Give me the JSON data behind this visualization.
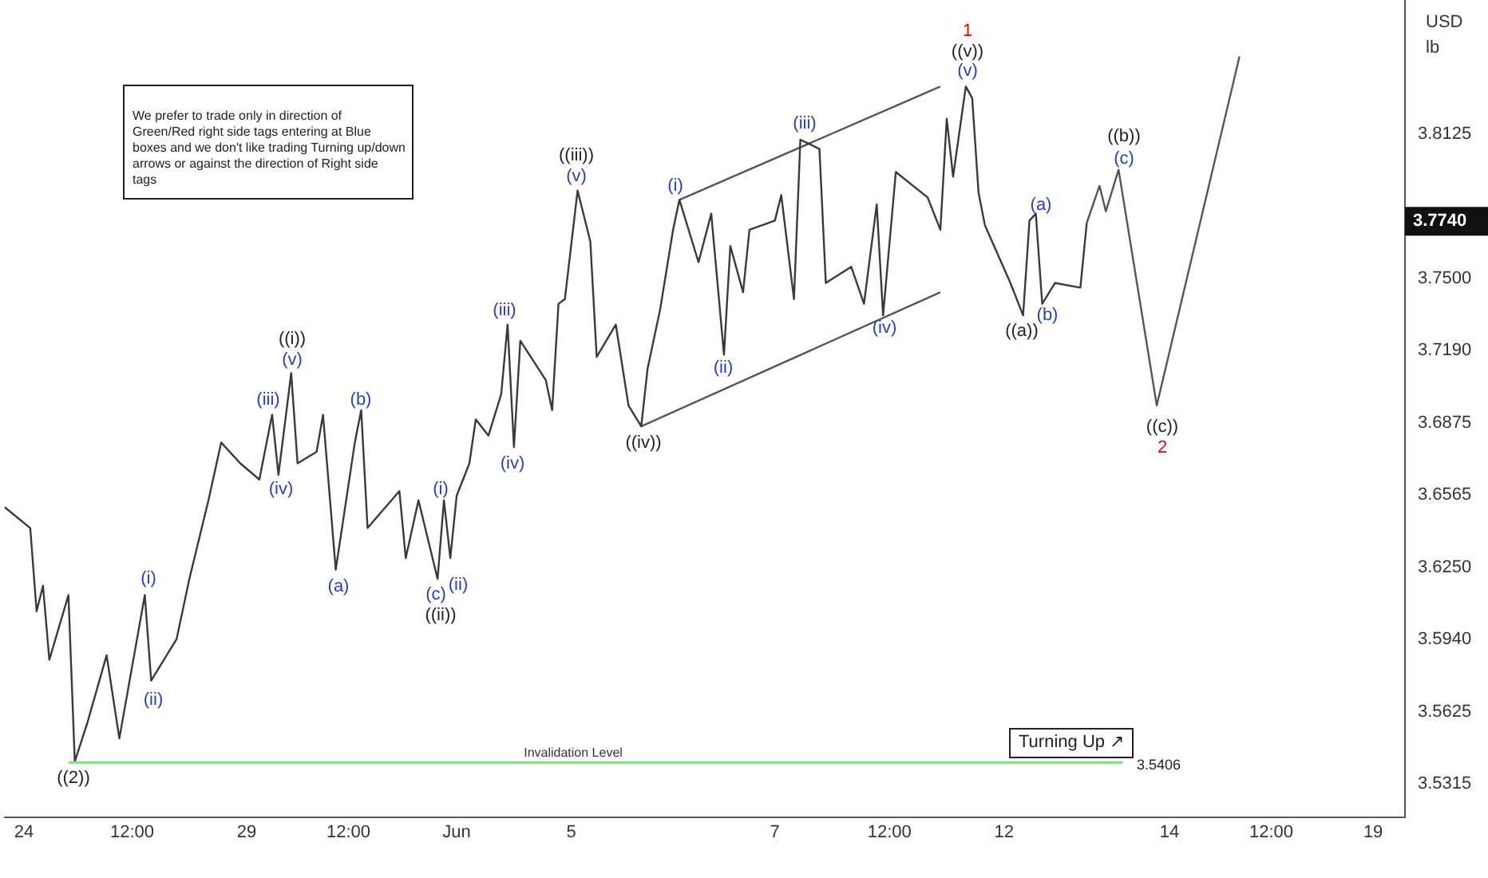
{
  "chart_data": {
    "type": "line",
    "ylabel": "USD lb",
    "ylim": [
      3.517,
      3.87
    ],
    "categories": [
      null,
      null,
      null,
      "24",
      null,
      null,
      null,
      null,
      null,
      null,
      null,
      null,
      null,
      null,
      null,
      null,
      null,
      null,
      null,
      null,
      "12:00",
      null,
      null,
      null,
      null,
      null,
      null,
      null,
      null,
      null,
      null,
      null,
      null,
      null,
      null,
      null,
      null,
      null,
      "29",
      null,
      null,
      null,
      null,
      null,
      null,
      null,
      null,
      null,
      null,
      null,
      null,
      null,
      null,
      null,
      "12:00",
      null,
      null,
      null,
      null,
      null,
      null,
      null,
      null,
      null,
      null,
      null,
      null,
      null,
      null,
      null,
      null,
      "Jun",
      null,
      null,
      null,
      null,
      null,
      null,
      null,
      null,
      null,
      null,
      null,
      null,
      null,
      null,
      null,
      null,
      null,
      "5",
      null,
      null,
      null,
      null,
      null,
      null,
      null,
      null,
      null,
      null,
      null,
      null,
      null,
      null,
      null,
      null,
      null,
      null,
      null,
      null,
      null,
      null,
      null,
      null,
      null,
      null,
      null,
      null,
      null,
      null,
      null,
      "7",
      null,
      null,
      null,
      null,
      null,
      null,
      null,
      null,
      null,
      null,
      null,
      null,
      null,
      null,
      null,
      null,
      null,
      "12:00",
      null,
      null,
      null,
      null,
      null,
      null,
      null,
      null,
      null,
      null,
      null,
      null,
      null,
      null,
      null,
      null,
      null,
      "12",
      null,
      null,
      null,
      null,
      null,
      null,
      null,
      null,
      null,
      null,
      null,
      null,
      null,
      null,
      null,
      null,
      null,
      null,
      null,
      null,
      null,
      null,
      null,
      null,
      null,
      "14",
      null,
      null,
      null,
      null,
      null,
      null,
      null,
      null,
      null,
      null,
      null,
      null,
      null,
      null,
      null,
      "12:00",
      null,
      null,
      null,
      null,
      null,
      null,
      null,
      null,
      null,
      null,
      null,
      null,
      null,
      null,
      null,
      "19",
      null,
      null,
      null,
      null,
      null
    ],
    "yticks": [
      3.5315,
      3.5625,
      {
        "value": 3.594,
        "label": "3.5940"
      },
      {
        "value": 3.625,
        "label": "3.6250"
      },
      3.6565,
      3.6875,
      {
        "value": 3.719,
        "label": "3.7190"
      },
      {
        "value": 3.75,
        "label": "3.7500"
      },
      3.8125
    ],
    "grid": false,
    "legend": false,
    "marker": "none",
    "line_style": "solid",
    "series": [
      {
        "color": "#3a3a3a",
        "values": [
          3.651,
          null,
          null,
          null,
          3.642,
          3.606,
          3.617,
          3.585,
          null,
          null,
          3.613,
          3.541,
          null,
          3.558,
          null,
          null,
          3.587,
          null,
          3.551,
          null,
          null,
          null,
          3.613,
          3.576,
          null,
          null,
          null,
          3.594,
          null,
          3.62,
          null,
          null,
          3.654,
          null,
          3.679,
          null,
          null,
          3.67,
          null,
          null,
          3.663,
          null,
          3.691,
          3.665,
          null,
          3.709,
          3.67,
          null,
          null,
          3.675,
          3.691,
          null,
          3.624,
          null,
          null,
          3.679,
          3.693,
          3.642,
          null,
          null,
          null,
          null,
          3.658,
          3.629,
          null,
          3.654,
          null,
          null,
          3.62,
          3.654,
          3.629,
          3.656,
          null,
          3.67,
          3.689,
          null,
          3.682,
          null,
          3.7,
          3.73,
          3.677,
          3.723,
          null,
          null,
          null,
          3.706,
          3.693,
          3.739,
          3.741,
          null,
          3.788,
          null,
          3.766,
          3.716,
          null,
          null,
          3.73,
          null,
          3.695,
          null,
          3.686,
          3.711,
          null,
          3.737,
          null,
          3.771,
          3.784,
          null,
          null,
          3.757,
          null,
          3.778,
          null,
          3.717,
          3.764,
          null,
          3.744,
          3.771,
          null,
          null,
          null,
          3.775,
          3.786,
          null,
          3.741,
          3.81,
          null,
          null,
          3.806,
          3.748,
          null,
          null,
          null,
          3.755,
          null,
          3.739,
          null,
          3.782,
          3.734,
          null,
          3.796,
          null,
          null,
          null,
          null,
          3.785,
          null,
          3.771,
          3.819,
          3.794,
          null,
          3.833,
          3.828,
          3.787,
          3.773,
          null,
          null,
          null,
          3.748,
          null,
          3.734,
          3.775,
          3.778,
          3.739,
          null,
          3.748,
          null,
          null,
          null,
          3.746,
          3.774,
          null,
          null,
          null,
          null,
          null,
          null,
          null,
          null,
          null,
          null,
          null,
          null,
          null,
          null,
          null,
          null,
          null,
          null,
          null,
          null,
          null,
          null,
          null,
          null,
          null,
          null,
          null,
          null,
          null,
          null,
          null,
          null,
          null,
          null,
          null,
          null,
          null,
          null,
          null,
          null,
          null,
          null,
          null,
          null,
          null,
          null,
          null,
          null,
          null,
          null
        ]
      },
      {
        "color": "#555555",
        "values": [
          null,
          null,
          null,
          null,
          null,
          null,
          null,
          null,
          null,
          null,
          null,
          null,
          null,
          null,
          null,
          null,
          null,
          null,
          null,
          null,
          null,
          null,
          null,
          null,
          null,
          null,
          null,
          null,
          null,
          null,
          null,
          null,
          null,
          null,
          null,
          null,
          null,
          null,
          null,
          null,
          null,
          null,
          null,
          null,
          null,
          null,
          null,
          null,
          null,
          null,
          null,
          null,
          null,
          null,
          null,
          null,
          null,
          null,
          null,
          null,
          null,
          null,
          null,
          null,
          null,
          null,
          null,
          null,
          null,
          null,
          null,
          null,
          null,
          null,
          null,
          null,
          null,
          null,
          null,
          null,
          null,
          null,
          null,
          null,
          null,
          null,
          null,
          null,
          null,
          null,
          null,
          null,
          null,
          null,
          null,
          null,
          null,
          null,
          null,
          null,
          null,
          null,
          null,
          null,
          null,
          null,
          null,
          null,
          null,
          null,
          null,
          null,
          null,
          null,
          null,
          null,
          null,
          null,
          null,
          null,
          null,
          null,
          null,
          null,
          null,
          null,
          null,
          null,
          null,
          null,
          null,
          null,
          null,
          null,
          null,
          null,
          null,
          null,
          null,
          null,
          null,
          null,
          null,
          null,
          null,
          null,
          null,
          null,
          null,
          null,
          null,
          null,
          null,
          null,
          null,
          null,
          null,
          null,
          null,
          null,
          null,
          null,
          null,
          null,
          null,
          null,
          null,
          null,
          null,
          null,
          3.774,
          null,
          3.79,
          3.779,
          null,
          3.797,
          null,
          null,
          null,
          null,
          null,
          3.695,
          null,
          null,
          null,
          null,
          null,
          null,
          null,
          null,
          null,
          null,
          null,
          null,
          3.846,
          null,
          null,
          null,
          null,
          null,
          null,
          null,
          null,
          null,
          null,
          null,
          null,
          null,
          null,
          null,
          null,
          null,
          null,
          null,
          null,
          null,
          null,
          null,
          null,
          null,
          null
        ]
      },
      {
        "color": "#555555",
        "values": [
          null,
          null,
          null,
          null,
          null,
          null,
          null,
          null,
          null,
          null,
          null,
          null,
          null,
          null,
          null,
          null,
          null,
          null,
          null,
          null,
          null,
          null,
          null,
          null,
          null,
          null,
          null,
          null,
          null,
          null,
          null,
          null,
          null,
          null,
          null,
          null,
          null,
          null,
          null,
          null,
          null,
          null,
          null,
          null,
          null,
          null,
          null,
          null,
          null,
          null,
          null,
          null,
          null,
          null,
          null,
          null,
          null,
          null,
          null,
          null,
          null,
          null,
          null,
          null,
          null,
          null,
          null,
          null,
          null,
          null,
          null,
          null,
          null,
          null,
          null,
          null,
          null,
          null,
          null,
          null,
          null,
          null,
          null,
          null,
          null,
          null,
          null,
          null,
          null,
          null,
          null,
          null,
          null,
          null,
          null,
          null,
          null,
          null,
          null,
          null,
          null,
          null,
          null,
          null,
          null,
          null,
          3.784,
          null,
          null,
          null,
          null,
          null,
          null,
          null,
          null,
          null,
          null,
          null,
          null,
          null,
          null,
          null,
          null,
          null,
          null,
          null,
          null,
          null,
          null,
          null,
          null,
          null,
          null,
          null,
          null,
          null,
          null,
          null,
          null,
          null,
          null,
          null,
          null,
          null,
          null,
          null,
          null,
          3.833,
          null,
          null,
          null,
          null,
          null,
          null,
          null,
          null,
          null,
          null,
          null,
          null,
          null,
          null,
          null,
          null,
          null,
          null,
          null,
          null,
          null,
          null,
          null,
          null,
          null,
          null,
          null,
          null,
          null,
          null,
          null,
          null,
          null,
          null,
          null,
          null,
          null,
          null,
          null,
          null,
          null,
          null,
          null,
          null,
          null,
          null,
          null,
          null,
          null,
          null,
          null,
          null,
          null,
          null,
          null,
          null,
          null,
          null,
          null,
          null,
          null,
          null,
          null,
          null,
          null,
          null,
          null,
          null,
          null,
          null,
          null,
          null,
          null
        ]
      },
      {
        "color": "#555555",
        "values": [
          null,
          null,
          null,
          null,
          null,
          null,
          null,
          null,
          null,
          null,
          null,
          null,
          null,
          null,
          null,
          null,
          null,
          null,
          null,
          null,
          null,
          null,
          null,
          null,
          null,
          null,
          null,
          null,
          null,
          null,
          null,
          null,
          null,
          null,
          null,
          null,
          null,
          null,
          null,
          null,
          null,
          null,
          null,
          null,
          null,
          null,
          null,
          null,
          null,
          null,
          null,
          null,
          null,
          null,
          null,
          null,
          null,
          null,
          null,
          null,
          null,
          null,
          null,
          null,
          null,
          null,
          null,
          null,
          null,
          null,
          null,
          null,
          null,
          null,
          null,
          null,
          null,
          null,
          null,
          null,
          null,
          null,
          null,
          null,
          null,
          null,
          null,
          null,
          null,
          null,
          null,
          null,
          null,
          null,
          null,
          null,
          null,
          null,
          null,
          null,
          3.686,
          null,
          null,
          null,
          null,
          null,
          null,
          null,
          null,
          null,
          null,
          null,
          null,
          null,
          null,
          null,
          null,
          null,
          null,
          null,
          null,
          null,
          null,
          null,
          null,
          null,
          null,
          null,
          null,
          null,
          null,
          null,
          null,
          null,
          null,
          null,
          null,
          null,
          null,
          null,
          null,
          null,
          null,
          null,
          null,
          null,
          null,
          3.744,
          null,
          null,
          null,
          null,
          null,
          null,
          null,
          null,
          null,
          null,
          null,
          null,
          null,
          null,
          null,
          null,
          null,
          null,
          null,
          null,
          null,
          null,
          null,
          null,
          null,
          null,
          null,
          null,
          null,
          null,
          null,
          null,
          null,
          null,
          null,
          null,
          null,
          null,
          null,
          null,
          null,
          null,
          null,
          null,
          null,
          null,
          null,
          null,
          null,
          null,
          null,
          null,
          null,
          null,
          null,
          null,
          null,
          null,
          null,
          null,
          null,
          null,
          null,
          null,
          null,
          null,
          null,
          null,
          null,
          null,
          null,
          null,
          null
        ]
      }
    ],
    "ref_lines": [
      {
        "axis": "y",
        "value": 3.5406,
        "label": "Invalidation Level",
        "color": "#7fdc7f"
      }
    ],
    "annotations": [
      "We prefer to trade only in direction of Green/Red right side tags entering at Blue boxes and we don't like trading Turning up/down arrows or against the direction of Right side tags",
      "Turning Up ↗",
      "3.7740",
      "3.5406",
      "((2))",
      "(i)",
      "(ii)",
      "(iii)",
      "(iv)",
      "(v)",
      "((i))",
      "(a)",
      "(b)",
      "(c)",
      "((ii))",
      "(i)",
      "(ii)",
      "(iii)",
      "(iv)",
      "(v)",
      "((iii))",
      "((iv))",
      "(i)",
      "(ii)",
      "(iii)",
      "(iv)",
      "(v)",
      "((v))",
      "1",
      "((a))",
      "(a)",
      "(b)",
      "((b))",
      "(c)",
      "((c))",
      "2"
    ]
  }
}
